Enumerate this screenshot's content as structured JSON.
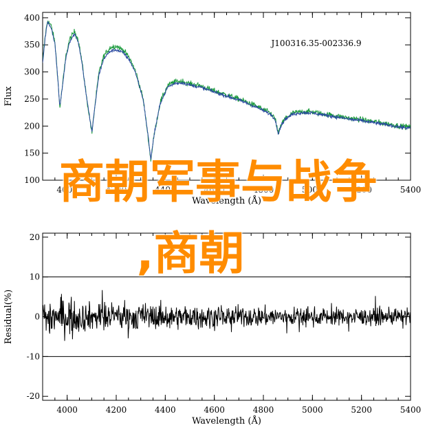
{
  "chart_data": [
    {
      "type": "line",
      "ylabel": "Flux",
      "xlabel": "Wavelength (Å)",
      "annotation": "J100316.35-002336.9",
      "xlim": [
        3900,
        5400
      ],
      "ylim": [
        100,
        410
      ],
      "yticks": [
        100,
        150,
        200,
        250,
        300,
        350,
        400
      ],
      "xticks": [
        4000,
        4200,
        4400,
        4600,
        4800,
        5000,
        5200,
        5400
      ],
      "xticklabels": [
        "4000",
        "4200",
        "4400",
        "4600",
        "4800",
        "5000",
        "5200",
        "5400"
      ],
      "yticklabels": [
        "100",
        "150",
        "200",
        "250",
        "300",
        "350",
        "400"
      ],
      "series": [
        {
          "color": "#1a9a3c",
          "points": [
            [
              3900,
              318
            ],
            [
              3910,
              365
            ],
            [
              3920,
              395
            ],
            [
              3935,
              385
            ],
            [
              3950,
              355
            ],
            [
              3960,
              300
            ],
            [
              3970,
              233
            ],
            [
              3982,
              280
            ],
            [
              3995,
              330
            ],
            [
              4010,
              360
            ],
            [
              4030,
              375
            ],
            [
              4045,
              360
            ],
            [
              4060,
              320
            ],
            [
              4080,
              250
            ],
            [
              4101,
              187
            ],
            [
              4115,
              245
            ],
            [
              4130,
              300
            ],
            [
              4150,
              330
            ],
            [
              4175,
              345
            ],
            [
              4200,
              348
            ],
            [
              4230,
              340
            ],
            [
              4255,
              325
            ],
            [
              4280,
              300
            ],
            [
              4310,
              250
            ],
            [
              4330,
              180
            ],
            [
              4341,
              137
            ],
            [
              4355,
              185
            ],
            [
              4380,
              245
            ],
            [
              4410,
              275
            ],
            [
              4440,
              282
            ],
            [
              4470,
              283
            ],
            [
              4500,
              278
            ],
            [
              4540,
              275
            ],
            [
              4580,
              268
            ],
            [
              4620,
              262
            ],
            [
              4660,
              256
            ],
            [
              4700,
              250
            ],
            [
              4740,
              243
            ],
            [
              4780,
              235
            ],
            [
              4810,
              228
            ],
            [
              4835,
              222
            ],
            [
              4850,
              210
            ],
            [
              4861,
              185
            ],
            [
              4873,
              203
            ],
            [
              4890,
              215
            ],
            [
              4920,
              224
            ],
            [
              4960,
              227
            ],
            [
              5000,
              226
            ],
            [
              5040,
              223
            ],
            [
              5080,
              220
            ],
            [
              5120,
              217
            ],
            [
              5160,
              214
            ],
            [
              5200,
              212
            ],
            [
              5240,
              209
            ],
            [
              5280,
              206
            ],
            [
              5320,
              203
            ],
            [
              5360,
              200
            ],
            [
              5400,
              198
            ]
          ]
        },
        {
          "color": "#2b4aa0",
          "points": [
            [
              3900,
              316
            ],
            [
              3910,
              362
            ],
            [
              3920,
              392
            ],
            [
              3935,
              382
            ],
            [
              3950,
              352
            ],
            [
              3960,
              298
            ],
            [
              3970,
              235
            ],
            [
              3982,
              278
            ],
            [
              3995,
              327
            ],
            [
              4010,
              356
            ],
            [
              4030,
              370
            ],
            [
              4045,
              356
            ],
            [
              4060,
              318
            ],
            [
              4080,
              250
            ],
            [
              4101,
              189
            ],
            [
              4115,
              243
            ],
            [
              4130,
              296
            ],
            [
              4150,
              325
            ],
            [
              4175,
              338
            ],
            [
              4200,
              341
            ],
            [
              4230,
              335
            ],
            [
              4255,
              321
            ],
            [
              4280,
              297
            ],
            [
              4310,
              249
            ],
            [
              4330,
              182
            ],
            [
              4341,
              139
            ],
            [
              4355,
              186
            ],
            [
              4380,
              243
            ],
            [
              4410,
              272
            ],
            [
              4440,
              279
            ],
            [
              4470,
              280
            ],
            [
              4500,
              276
            ],
            [
              4540,
              272
            ],
            [
              4580,
              266
            ],
            [
              4620,
              260
            ],
            [
              4660,
              254
            ],
            [
              4700,
              248
            ],
            [
              4740,
              241
            ],
            [
              4780,
              233
            ],
            [
              4810,
              226
            ],
            [
              4835,
              220
            ],
            [
              4850,
              209
            ],
            [
              4861,
              186
            ],
            [
              4873,
              202
            ],
            [
              4890,
              213
            ],
            [
              4920,
              222
            ],
            [
              4960,
              225
            ],
            [
              5000,
              224
            ],
            [
              5040,
              221
            ],
            [
              5080,
              218
            ],
            [
              5120,
              215
            ],
            [
              5160,
              212
            ],
            [
              5200,
              210
            ],
            [
              5240,
              207
            ],
            [
              5280,
              204
            ],
            [
              5320,
              201
            ],
            [
              5360,
              198
            ],
            [
              5400,
              196
            ]
          ]
        }
      ]
    },
    {
      "type": "line",
      "ylabel": "Residual(%)",
      "xlabel": "Wavelength (Å)",
      "xlim": [
        3900,
        5400
      ],
      "ylim": [
        -21,
        21
      ],
      "yticks": [
        -20,
        -10,
        0,
        10,
        20
      ],
      "yticklabels": [
        "-20",
        "-10",
        "0",
        "10",
        "20"
      ],
      "xticks": [
        4000,
        4200,
        4400,
        4600,
        4800,
        5000,
        5200,
        5400
      ],
      "xticklabels": [
        "4000",
        "4200",
        "4400",
        "4600",
        "4800",
        "5000",
        "5200",
        "5400"
      ],
      "hlines": [
        10,
        -10
      ],
      "series": [
        {
          "color": "#000000",
          "amplitude_envelope": [
            [
              3900,
              9
            ],
            [
              4000,
              8
            ],
            [
              4100,
              6
            ],
            [
              4300,
              6
            ],
            [
              4500,
              5
            ],
            [
              4800,
              4.5
            ],
            [
              5000,
              4
            ],
            [
              5400,
              3.5
            ]
          ]
        }
      ]
    }
  ],
  "overlay": {
    "line1": "商朝军事与战争",
    "line2": ",商朝"
  }
}
